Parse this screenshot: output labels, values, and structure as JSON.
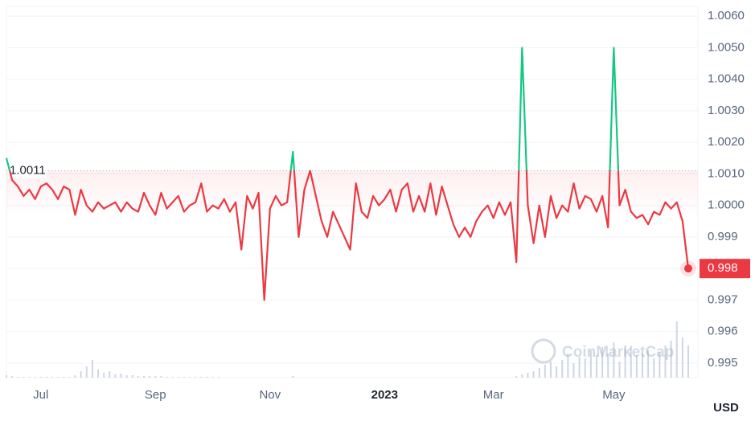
{
  "chart_data": {
    "type": "line",
    "categories": [
      null,
      null,
      null,
      null,
      null,
      null,
      "Jul",
      null,
      null,
      null,
      null,
      null,
      null,
      null,
      null,
      null,
      null,
      null,
      null,
      null,
      null,
      null,
      null,
      null,
      null,
      null,
      "Sep",
      null,
      null,
      null,
      null,
      null,
      null,
      null,
      null,
      null,
      null,
      null,
      null,
      null,
      null,
      null,
      null,
      null,
      null,
      null,
      "Nov",
      null,
      null,
      null,
      null,
      null,
      null,
      null,
      null,
      null,
      null,
      null,
      null,
      null,
      null,
      null,
      null,
      null,
      null,
      null,
      "2023",
      null,
      null,
      null,
      null,
      null,
      null,
      null,
      null,
      null,
      null,
      null,
      null,
      null,
      null,
      null,
      null,
      null,
      null,
      "Mar",
      null,
      null,
      null,
      null,
      null,
      null,
      null,
      null,
      null,
      null,
      null,
      null,
      null,
      null,
      null,
      null,
      null,
      null,
      null,
      null,
      "May",
      null,
      null,
      null,
      null,
      null,
      null,
      null,
      null,
      null,
      null,
      null,
      null,
      null
    ],
    "values": [
      1.0015,
      1.0008,
      1.0006,
      1.0003,
      1.0005,
      1.0002,
      1.0006,
      1.0007,
      1.0005,
      1.0002,
      1.0006,
      1.0005,
      0.9997,
      1.0005,
      1.0,
      0.9998,
      1.0001,
      0.9999,
      1.0,
      1.0001,
      0.9998,
      1.0001,
      0.9999,
      0.9998,
      1.0004,
      1.0,
      0.9997,
      1.0004,
      0.9999,
      1.0001,
      1.0003,
      0.9998,
      1.0,
      1.0001,
      1.0007,
      0.9998,
      1.0,
      0.9999,
      1.0002,
      0.9998,
      1.0001,
      0.9986,
      1.0003,
      0.9999,
      1.0004,
      0.997,
      0.9999,
      1.0003,
      1.0,
      1.0001,
      1.0017,
      0.999,
      1.0005,
      1.0011,
      1.0003,
      0.9995,
      0.999,
      0.9998,
      0.9994,
      0.999,
      0.9986,
      1.0007,
      0.9998,
      0.9996,
      1.0003,
      1.0,
      1.0002,
      1.0005,
      0.9998,
      1.0005,
      1.0007,
      0.9998,
      1.0003,
      0.9998,
      1.0007,
      0.9997,
      1.0006,
      1.0,
      0.9994,
      0.999,
      0.9993,
      0.999,
      0.9995,
      0.9998,
      1.0,
      0.9996,
      1.0001,
      0.9997,
      1.0001,
      0.9982,
      1.005,
      1.0,
      0.9988,
      1.0,
      0.999,
      1.0003,
      0.9996,
      1.0,
      0.9998,
      1.0007,
      0.9999,
      1.0003,
      1.0002,
      0.9998,
      1.0003,
      0.9993,
      1.005,
      1.0,
      1.0005,
      0.9998,
      0.9996,
      0.9997,
      0.9994,
      0.9998,
      0.9997,
      1.0001,
      0.9999,
      1.0001,
      0.9995,
      0.998
    ],
    "color": "#ea3943",
    "above_color": "#16c784",
    "reference_line": 1.0011,
    "volume": [
      3,
      2,
      1,
      1,
      1,
      1,
      1,
      1,
      1,
      1,
      1,
      1,
      3,
      8,
      14,
      22,
      10,
      6,
      8,
      4,
      5,
      3,
      3,
      2,
      2,
      2,
      2,
      2,
      1,
      1,
      1,
      1,
      1,
      1,
      1,
      1,
      1,
      1,
      0,
      0,
      0,
      0,
      0,
      0,
      0,
      0,
      0,
      0,
      0,
      0,
      2,
      0,
      0,
      0,
      0,
      0,
      0,
      0,
      0,
      0,
      0,
      0,
      0,
      0,
      0,
      0,
      0,
      0,
      0,
      0,
      0,
      0,
      0,
      0,
      0,
      0,
      0,
      0,
      0,
      0,
      0,
      0,
      0,
      0,
      0,
      0,
      0,
      0,
      0,
      2,
      4,
      6,
      8,
      12,
      16,
      20,
      14,
      22,
      30,
      18,
      26,
      24,
      34,
      28,
      38,
      30,
      44,
      20,
      36,
      40,
      28,
      30,
      34,
      24,
      32,
      40,
      46,
      70,
      50,
      40
    ],
    "volume_color": "#cfd6e4",
    "ylim": [
      0.99454,
      1.00631
    ],
    "yticks": [
      0.995,
      0.996,
      0.997,
      0.998,
      0.999,
      {
        "value": 1.0,
        "label": "1.0000"
      },
      {
        "value": 1.001,
        "label": "1.0010"
      },
      {
        "value": 1.002,
        "label": "1.0020"
      },
      {
        "value": 1.003,
        "label": "1.0030"
      },
      {
        "value": 1.004,
        "label": "1.0040"
      },
      {
        "value": 1.005,
        "label": "1.0050"
      },
      {
        "value": 1.006,
        "label": "1.0060"
      }
    ],
    "grid": true,
    "currency": "USD",
    "watermark": "CoinMarketCap"
  }
}
